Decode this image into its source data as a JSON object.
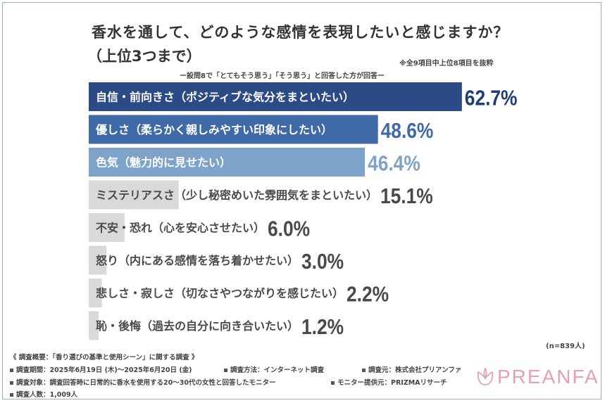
{
  "header": {
    "title": "香水を通して、どのような感情を表現したいと感じますか？",
    "subtitle": "（上位3つまで）",
    "note_right": "※全9項目中上位8項目を抜粋",
    "question_note": "ー設問8で「とてもそう思う」「そう思う」と回答した方が回答ー"
  },
  "sample_size": "(n=839人)",
  "chart_data": {
    "type": "bar",
    "orientation": "horizontal",
    "categories": [
      "自信・前向きさ（ポジティブな気分をまといたい）",
      "優しさ（柔らかく親しみやすい印象にしたい）",
      "色気（魅力的に見せたい）",
      "ミステリアスさ（少し秘密めいた雰囲気をまといたい）",
      "不安・恐れ（心を安心させたい）",
      "怒り（内にある感情を落ち着かせたい）",
      "悲しさ・寂しさ（切なさやつながりを感じたい）",
      "恥・後悔（過去の自分に向き合いたい）"
    ],
    "values": [
      62.7,
      48.6,
      46.4,
      15.1,
      6.0,
      3.0,
      2.2,
      1.2
    ],
    "value_labels": [
      "62.7%",
      "48.6%",
      "46.4%",
      "15.1%",
      "6.0%",
      "3.0%",
      "2.2%",
      "1.2%"
    ],
    "bar_colors": [
      "#2b4a86",
      "#3f6aa8",
      "#7ea3c9",
      "#d9d9d9",
      "#d9d9d9",
      "#d9d9d9",
      "#d9d9d9",
      "#d9d9d9"
    ],
    "label_colors": [
      "#ffffff",
      "#ffffff",
      "#ffffff",
      "#4a4a4a",
      "#4a4a4a",
      "#4a4a4a",
      "#4a4a4a",
      "#4a4a4a"
    ],
    "value_colors": [
      "#1f3e78",
      "#3f6aa8",
      "#7ea3c9",
      "#4a4a4a",
      "#4a4a4a",
      "#4a4a4a",
      "#4a4a4a",
      "#4a4a4a"
    ],
    "xlim": [
      0,
      100
    ]
  },
  "footer": {
    "overview": "《 調査概要：「香り選びの基準と使用シーン」に関する調査 》",
    "period": "調査期間：2025年6月19日 (木)〜2025年6月20日 (金)",
    "method": "調査方法：インターネット調査",
    "source": "調査元：株式会社プリアンファ",
    "target": "調査対象：調査回答時に日常的に香水を使用する20〜30代の女性と回答したモニター",
    "provider": "モニター提供元：PRIZMAリサーチ",
    "count": "調査人数：1,009人"
  },
  "logo": {
    "text": "PREANFA",
    "color": "#e7a1ae"
  }
}
